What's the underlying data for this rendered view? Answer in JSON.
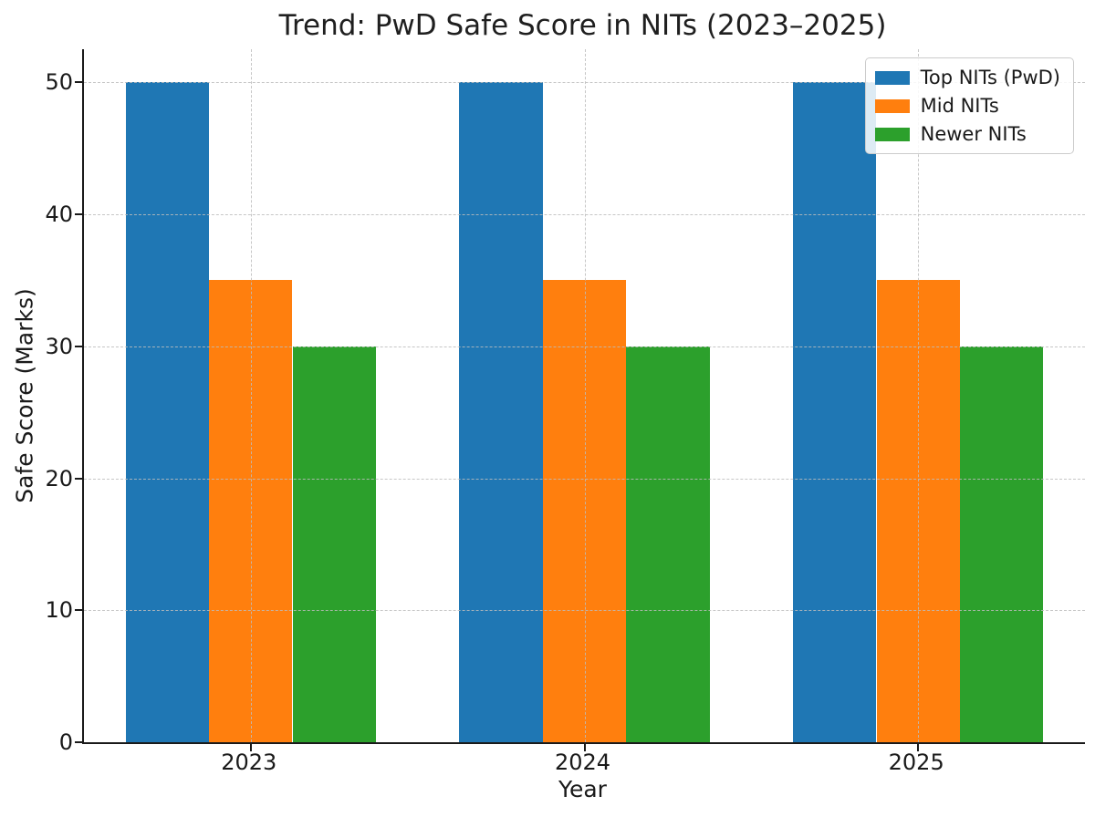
{
  "chart_data": {
    "type": "bar",
    "title": "Trend: PwD Safe Score in NITs (2023–2025)",
    "xlabel": "Year",
    "ylabel": "Safe Score (Marks)",
    "categories": [
      "2023",
      "2024",
      "2025"
    ],
    "series": [
      {
        "name": "Top NITs (PwD)",
        "color": "#1f77b4",
        "values": [
          50,
          50,
          50
        ]
      },
      {
        "name": "Mid NITs",
        "color": "#ff7f0e",
        "values": [
          35,
          35,
          35
        ]
      },
      {
        "name": "Newer NITs",
        "color": "#2ca02c",
        "values": [
          30,
          30,
          30
        ]
      }
    ],
    "ylim": [
      0,
      52.5
    ],
    "yticks": [
      0,
      10,
      20,
      30,
      40,
      50
    ],
    "grid": true,
    "grid_style": "dashed",
    "grid_color": "#bdbdbd",
    "legend_position": "upper right",
    "bar_width_fraction": 0.25
  }
}
